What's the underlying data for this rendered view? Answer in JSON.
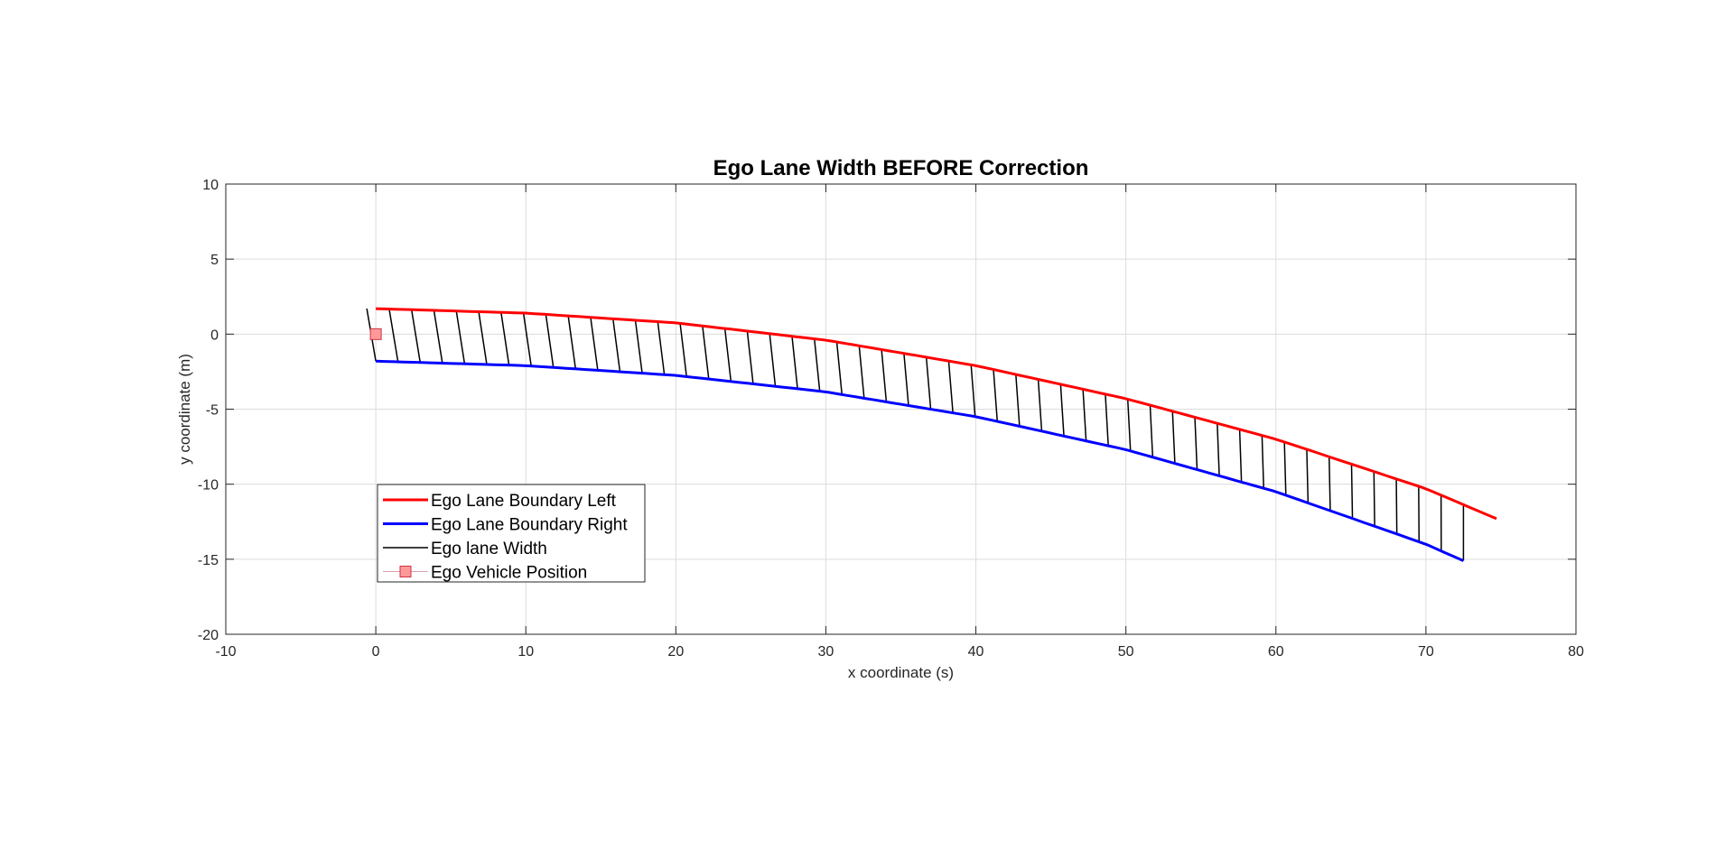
{
  "chart_data": {
    "type": "line",
    "title": "Ego Lane Width BEFORE Correction",
    "xlabel": "x coordinate (s)",
    "ylabel": "y coordinate (m)",
    "xlim": [
      -10,
      80
    ],
    "ylim": [
      -20,
      10
    ],
    "xticks": [
      -10,
      0,
      10,
      20,
      30,
      40,
      50,
      60,
      70,
      80
    ],
    "yticks": [
      -20,
      -15,
      -10,
      -5,
      0,
      5,
      10
    ],
    "grid": true,
    "legend_position": "bottom-left",
    "series": [
      {
        "name": "Ego Lane Boundary Left",
        "color": "#ff0000",
        "x": [
          0,
          10,
          20,
          30,
          40,
          50,
          60,
          70,
          74.7
        ],
        "y": [
          1.7,
          1.4,
          0.75,
          -0.4,
          -2.1,
          -4.3,
          -7.0,
          -10.3,
          -12.3
        ]
      },
      {
        "name": "Ego Lane Boundary Right",
        "color": "#0000ff",
        "x": [
          0,
          10,
          20,
          30,
          40,
          50,
          60,
          70,
          72.5
        ],
        "y": [
          -1.8,
          -2.1,
          -2.75,
          -3.85,
          -5.5,
          -7.7,
          -10.5,
          -14.0,
          -15.1
        ]
      },
      {
        "name": "Ego lane Width",
        "color": "#000000",
        "connectors": 50
      },
      {
        "name": "Ego Vehicle Position",
        "color": "#ff9999",
        "marker": "square",
        "x": [
          0
        ],
        "y": [
          0
        ]
      }
    ]
  }
}
